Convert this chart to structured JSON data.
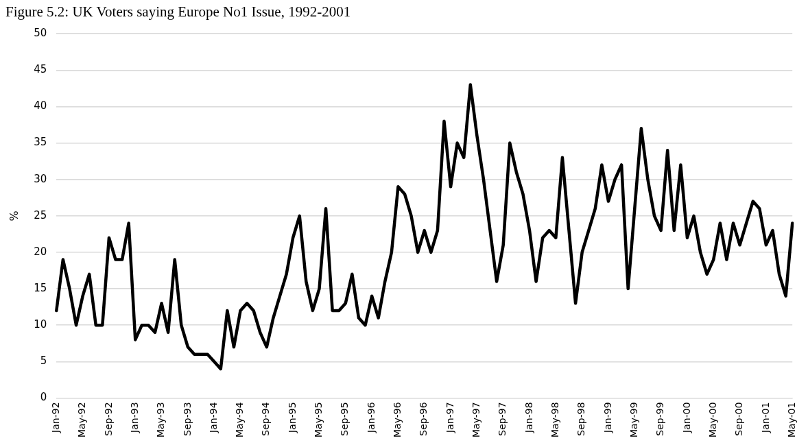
{
  "chart_data": {
    "type": "line",
    "title": "Figure 5.2: UK Voters saying Europe No1 Issue, 1992-2001",
    "ylabel": "%",
    "categories": [
      "Jan-92",
      null,
      null,
      null,
      "May-92",
      null,
      null,
      null,
      "Sep-92",
      null,
      null,
      null,
      "Jan-93",
      null,
      null,
      null,
      "May-93",
      null,
      null,
      null,
      "Sep-93",
      null,
      null,
      null,
      "Jan-94",
      null,
      null,
      null,
      "May-94",
      null,
      null,
      null,
      "Sep-94",
      null,
      null,
      null,
      "Jan-95",
      null,
      null,
      null,
      "May-95",
      null,
      null,
      null,
      "Sep-95",
      null,
      null,
      null,
      "Jan-96",
      null,
      null,
      null,
      "May-96",
      null,
      null,
      null,
      "Sep-96",
      null,
      null,
      null,
      "Jan-97",
      null,
      null,
      null,
      "May-97",
      null,
      null,
      null,
      "Sep-97",
      null,
      null,
      null,
      "Jan-98",
      null,
      null,
      null,
      "May-98",
      null,
      null,
      null,
      "Sep-98",
      null,
      null,
      null,
      "Jan-99",
      null,
      null,
      null,
      "May-99",
      null,
      null,
      null,
      "Sep-99",
      null,
      null,
      null,
      "Jan-00",
      null,
      null,
      null,
      "May-00",
      null,
      null,
      null,
      "Sep-00",
      null,
      null,
      null,
      "Jan-01",
      null,
      null,
      null,
      "May-01"
    ],
    "series": [
      {
        "color": "#000000",
        "values": [
          12,
          19,
          15,
          10,
          14,
          17,
          10,
          10,
          22,
          19,
          19,
          24,
          8,
          10,
          10,
          9,
          13,
          9,
          19,
          10,
          7,
          6,
          6,
          6,
          5,
          4,
          12,
          7,
          12,
          13,
          12,
          9,
          7,
          11,
          14,
          17,
          22,
          25,
          16,
          12,
          15,
          26,
          12,
          12,
          13,
          17,
          11,
          10,
          14,
          11,
          16,
          20,
          29,
          28,
          25,
          20,
          23,
          20,
          23,
          38,
          29,
          35,
          33,
          43,
          36,
          30,
          23,
          16,
          21,
          35,
          31,
          28,
          23,
          16,
          22,
          23,
          22,
          33,
          23,
          13,
          20,
          23,
          26,
          32,
          27,
          30,
          32,
          15,
          26,
          37,
          30,
          25,
          23,
          34,
          23,
          32,
          22,
          25,
          20,
          17,
          19,
          24,
          19,
          24,
          21,
          24,
          27,
          26,
          21,
          23,
          17,
          14,
          24
        ]
      }
    ],
    "ylim": [
      0,
      50
    ],
    "yticks": [
      0,
      5,
      10,
      15,
      20,
      25,
      30,
      35,
      40,
      45,
      50
    ],
    "grid": "y",
    "legend": false,
    "marker": "none",
    "line_style": "solid"
  }
}
